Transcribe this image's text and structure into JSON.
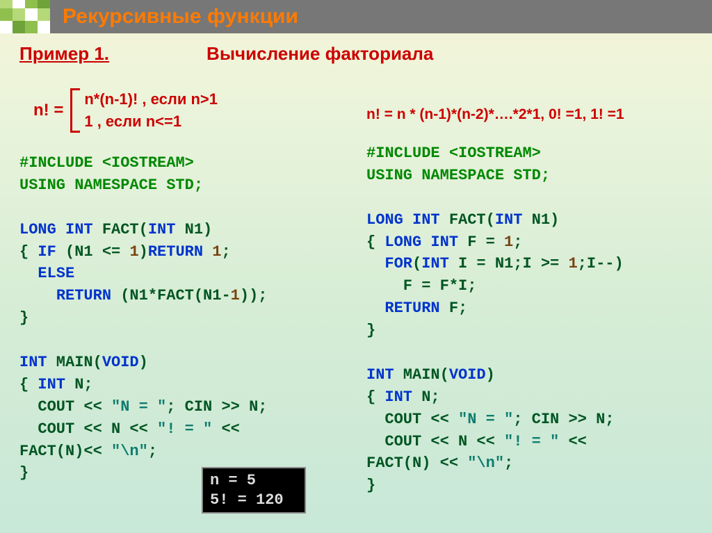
{
  "colors": {
    "header_bg": "#777777",
    "accent_orange": "#ff7a00",
    "accent_red": "#cc0000",
    "code_blue": "#0033cc",
    "code_green": "#008800",
    "code_brown": "#774411",
    "code_teal": "#0e7d6e",
    "bg_gradient_top": "#f5f5d8",
    "bg_gradient_bottom": "#c8e8d8"
  },
  "header": {
    "title": "Рекурсивные функции"
  },
  "example_label": "Пример 1.",
  "calc_title": "Вычисление факториала",
  "formula": {
    "lhs": "n!   =",
    "case1": "n*(n-1)! , если n>1",
    "case2": "1 , если n<=1"
  },
  "formula_flat": "n! = n * (n-1)*(n-2)*….*2*1,  0! =1, 1! =1",
  "code_left": {
    "l1a": "#INCLUDE ",
    "l1b": "<IOSTREAM>",
    "l2": "USING NAMESPACE STD;",
    "l3a": "LONG INT",
    "l3b": " FACT(",
    "l3c": "INT",
    "l3d": " N1)",
    "l4a": "{ ",
    "l4b": "IF",
    "l4c": " (N1 <= ",
    "l4d": "1",
    "l4e": ")",
    "l4f": "RETURN",
    "l4g": " 1",
    "l4h": ";",
    "l5a": "  ",
    "l5b": "ELSE",
    "l6a": "    ",
    "l6b": "RETURN",
    "l6c": " (N1*FACT(N1-",
    "l6d": "1",
    "l6e": "));",
    "l7": "}",
    "l8a": "INT",
    "l8b": " MAIN(",
    "l8c": "VOID",
    "l8d": ")",
    "l9a": "{ ",
    "l9b": "INT",
    "l9c": " N;",
    "l10a": "  COUT << ",
    "l10b": "\"N = \"",
    "l10c": "; CIN >> N;",
    "l11a": "  COUT << N << ",
    "l11b": "\"! = \"",
    "l11c": " <<",
    "l12a": "FACT(N)<< ",
    "l12b": "\"\\n\"",
    "l12c": ";",
    "l13": "}"
  },
  "code_right": {
    "l1a": "#INCLUDE ",
    "l1b": "<IOSTREAM>",
    "l2": "USING NAMESPACE STD;",
    "l3a": "LONG INT",
    "l3b": " FACT(",
    "l3c": "INT",
    "l3d": " N1)",
    "l4a": "{ ",
    "l4b": "LONG INT",
    "l4c": " F = ",
    "l4d": "1",
    "l4e": ";",
    "l5a": "  ",
    "l5b": "FOR",
    "l5c": "(",
    "l5d": "INT",
    "l5e": " I = N1;I >= ",
    "l5f": "1",
    "l5g": ";I--)",
    "l6": "    F = F*I;",
    "l7a": "  ",
    "l7b": "RETURN",
    "l7c": " F;",
    "l8": "}",
    "l9a": "INT",
    "l9b": " MAIN(",
    "l9c": "VOID",
    "l9d": ")",
    "l10a": "{ ",
    "l10b": "INT",
    "l10c": " N;",
    "l11a": "  COUT << ",
    "l11b": "\"N = \"",
    "l11c": "; CIN >> N;",
    "l12a": "  COUT << N << ",
    "l12b": "\"! = \"",
    "l12c": " <<",
    "l13a": "FACT(N) << ",
    "l13b": "\"\\n\"",
    "l13c": ";",
    "l14": "}"
  },
  "terminal": {
    "line1": "n = 5",
    "line2": "5! = 120"
  }
}
